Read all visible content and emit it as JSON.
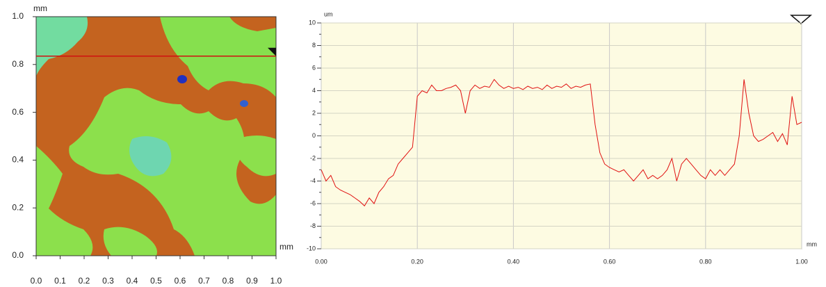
{
  "chart_data": [
    {
      "type": "image",
      "x_unit": "mm",
      "y_unit": "mm",
      "xlim": [
        0,
        1
      ],
      "ylim": [
        0,
        1
      ],
      "xticks": [
        {
          "value": 0,
          "label": "0.0"
        },
        {
          "value": 0.1,
          "label": "0.1"
        },
        {
          "value": 0.2,
          "label": "0.2"
        },
        {
          "value": 0.3,
          "label": "0.3"
        },
        {
          "value": 0.4,
          "label": "0.4"
        },
        {
          "value": 0.5,
          "label": "0.5"
        },
        {
          "value": 0.6,
          "label": "0.6"
        },
        {
          "value": 0.7,
          "label": "0.7"
        },
        {
          "value": 0.8,
          "label": "0.8"
        },
        {
          "value": 0.9,
          "label": "0.9"
        },
        {
          "value": 1,
          "label": "1.0"
        }
      ],
      "yticks": [
        {
          "value": 0,
          "label": "0.0"
        },
        {
          "value": 0.2,
          "label": "0.2"
        },
        {
          "value": 0.4,
          "label": "0.4"
        },
        {
          "value": 0.6,
          "label": "0.6"
        },
        {
          "value": 0.8,
          "label": "0.8"
        },
        {
          "value": 1,
          "label": "1.0"
        }
      ],
      "profile_y": 0.835,
      "profile_color": "#d01010"
    },
    {
      "type": "line",
      "y_label": "um",
      "x_label": "mm",
      "xlim": [
        0,
        1
      ],
      "ylim": [
        -10,
        10
      ],
      "xticks": [
        {
          "value": 0,
          "label": "0.00"
        },
        {
          "value": 0.2,
          "label": "0.20"
        },
        {
          "value": 0.4,
          "label": "0.40"
        },
        {
          "value": 0.6,
          "label": "0.60"
        },
        {
          "value": 0.8,
          "label": "0.80"
        },
        {
          "value": 1,
          "label": "1.00"
        }
      ],
      "yticks": [
        -10,
        -8,
        -6,
        -4,
        -2,
        0,
        2,
        4,
        6,
        8,
        10
      ],
      "grid": true,
      "x": [
        0,
        0.01,
        0.02,
        0.03,
        0.04,
        0.05,
        0.06,
        0.07,
        0.08,
        0.09,
        0.1,
        0.11,
        0.12,
        0.13,
        0.14,
        0.15,
        0.16,
        0.17,
        0.18,
        0.19,
        0.2,
        0.21,
        0.22,
        0.23,
        0.24,
        0.25,
        0.26,
        0.27,
        0.28,
        0.29,
        0.3,
        0.31,
        0.32,
        0.33,
        0.34,
        0.35,
        0.36,
        0.37,
        0.38,
        0.39,
        0.4,
        0.41,
        0.42,
        0.43,
        0.44,
        0.45,
        0.46,
        0.47,
        0.48,
        0.49,
        0.5,
        0.51,
        0.52,
        0.53,
        0.54,
        0.55,
        0.56,
        0.57,
        0.58,
        0.59,
        0.6,
        0.61,
        0.62,
        0.63,
        0.64,
        0.65,
        0.66,
        0.67,
        0.68,
        0.69,
        0.7,
        0.71,
        0.72,
        0.73,
        0.74,
        0.75,
        0.76,
        0.77,
        0.78,
        0.79,
        0.8,
        0.81,
        0.82,
        0.83,
        0.84,
        0.85,
        0.86,
        0.87,
        0.88,
        0.89,
        0.9,
        0.91,
        0.92,
        0.93,
        0.94,
        0.95,
        0.96,
        0.97,
        0.98,
        0.99,
        1
      ],
      "color": "#e01010",
      "values": [
        -3,
        -4,
        -3.5,
        -4.5,
        -4.8,
        -5,
        -5.2,
        -5.5,
        -5.8,
        -6.2,
        -5.5,
        -6,
        -5,
        -4.5,
        -3.8,
        -3.5,
        -2.5,
        -2,
        -1.5,
        -1,
        3.5,
        4,
        3.8,
        4.5,
        4,
        4,
        4.2,
        4.3,
        4.5,
        4,
        2,
        4,
        4.5,
        4.2,
        4.4,
        4.3,
        5,
        4.5,
        4.2,
        4.4,
        4.2,
        4.3,
        4.1,
        4.4,
        4.2,
        4.3,
        4.1,
        4.5,
        4.2,
        4.4,
        4.3,
        4.6,
        4.2,
        4.4,
        4.3,
        4.5,
        4.6,
        1,
        -1.5,
        -2.5,
        -2.8,
        -3,
        -3.2,
        -3,
        -3.5,
        -4,
        -3.5,
        -3,
        -3.8,
        -3.5,
        -3.8,
        -3.5,
        -3,
        -2,
        -4,
        -2.5,
        -2,
        -2.5,
        -3,
        -3.5,
        -3.8,
        -3,
        -3.5,
        -3,
        -3.5,
        -3,
        -2.5,
        0,
        5,
        2,
        0,
        -0.5,
        -0.3,
        0,
        0.3,
        -0.5,
        0.2,
        -0.8,
        3.5,
        1,
        1.2
      ]
    }
  ]
}
